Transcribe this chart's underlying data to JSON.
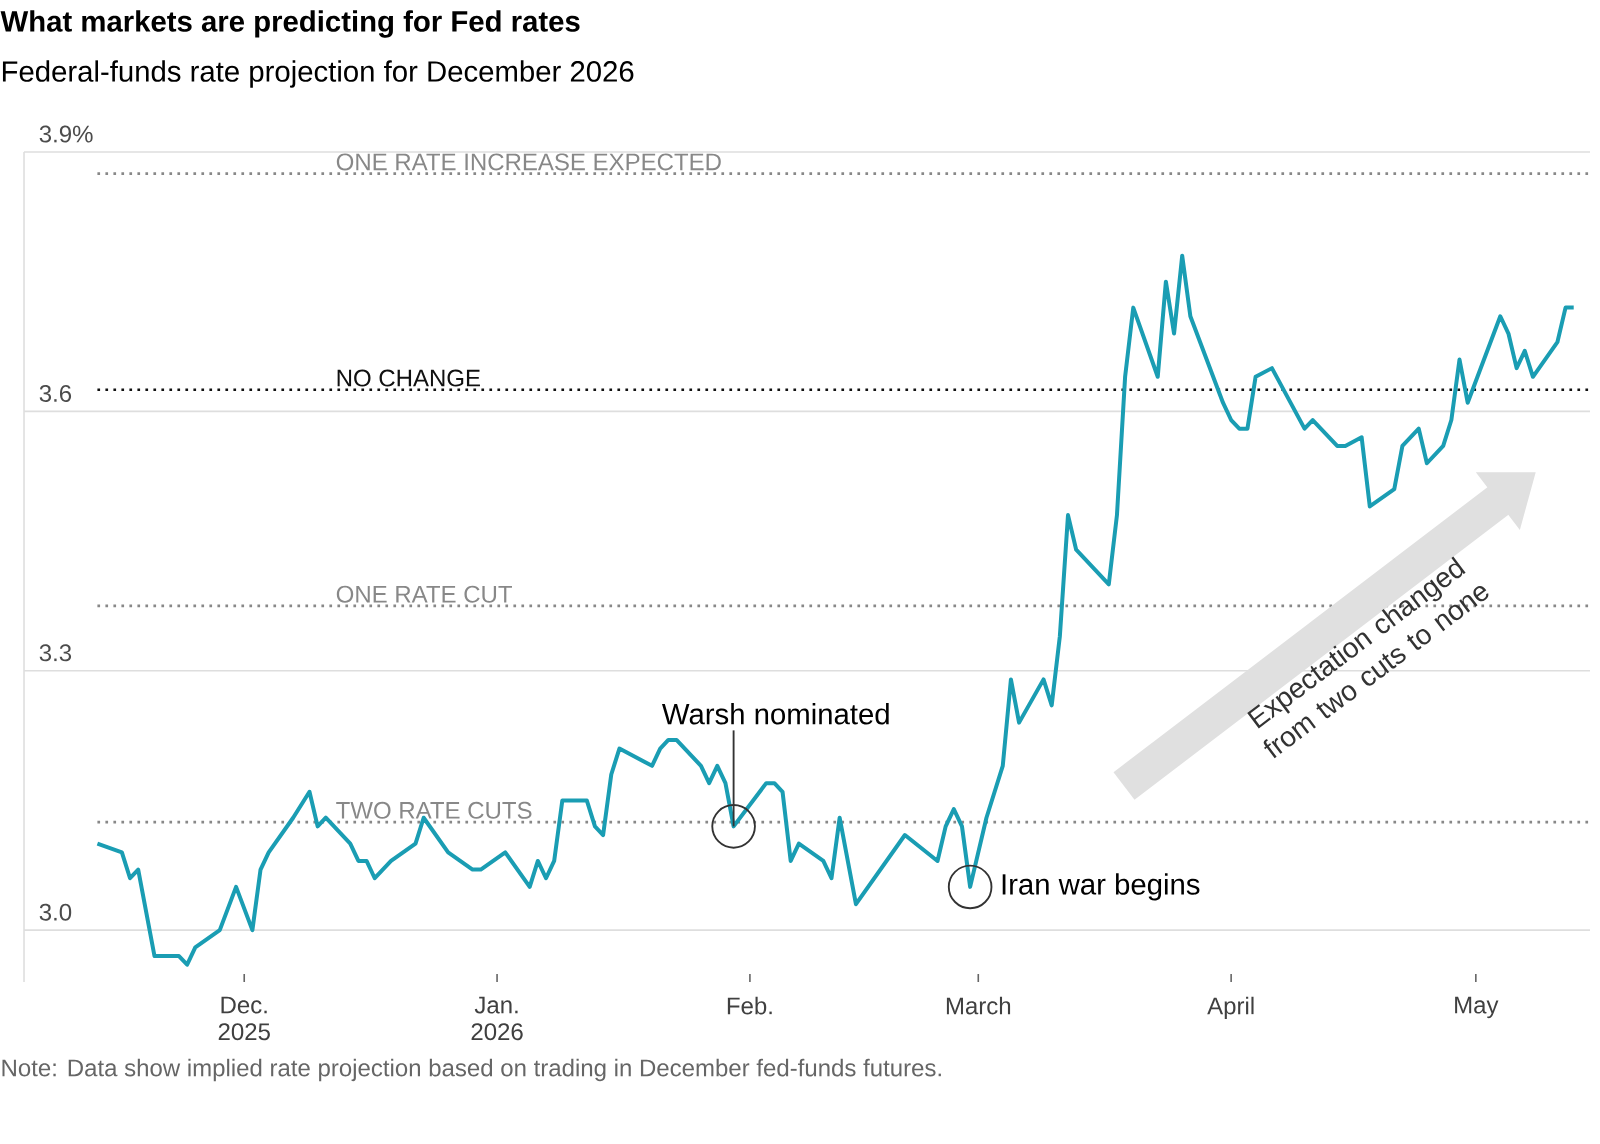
{
  "chart_data": {
    "type": "line",
    "title": "What markets are predicting for Fed rates",
    "subtitle": "Federal-funds rate projection for December 2026",
    "x": [
      "2025-11-13",
      "2025-11-16",
      "2025-11-17",
      "2025-11-18",
      "2025-11-20",
      "2025-11-23",
      "2025-11-24",
      "2025-11-25",
      "2025-11-28",
      "2025-11-30",
      "2025-12-02",
      "2025-12-03",
      "2025-12-04",
      "2025-12-07",
      "2025-12-09",
      "2025-12-10",
      "2025-12-11",
      "2025-12-14",
      "2025-12-15",
      "2025-12-16",
      "2025-12-17",
      "2025-12-19",
      "2025-12-22",
      "2025-12-23",
      "2025-12-26",
      "2025-12-29",
      "2025-12-30",
      "2026-01-02",
      "2026-01-05",
      "2026-01-06",
      "2026-01-07",
      "2026-01-08",
      "2026-01-09",
      "2026-01-12",
      "2026-01-13",
      "2026-01-14",
      "2026-01-15",
      "2026-01-16",
      "2026-01-20",
      "2026-01-21",
      "2026-01-22",
      "2026-01-23",
      "2026-01-26",
      "2026-01-27",
      "2026-01-28",
      "2026-01-29",
      "2026-01-30",
      "2026-02-03",
      "2026-02-04",
      "2026-02-05",
      "2026-02-06",
      "2026-02-07",
      "2026-02-10",
      "2026-02-11",
      "2026-02-12",
      "2026-02-14",
      "2026-02-20",
      "2026-02-24",
      "2026-02-25",
      "2026-02-26",
      "2026-02-27",
      "2026-02-28",
      "2026-03-02",
      "2026-03-04",
      "2026-03-05",
      "2026-03-06",
      "2026-03-09",
      "2026-03-10",
      "2026-03-11",
      "2026-03-12",
      "2026-03-13",
      "2026-03-17",
      "2026-03-18",
      "2026-03-19",
      "2026-03-20",
      "2026-03-23",
      "2026-03-24",
      "2026-03-25",
      "2026-03-26",
      "2026-03-27",
      "2026-03-31",
      "2026-04-01",
      "2026-04-02",
      "2026-04-03",
      "2026-04-04",
      "2026-04-06",
      "2026-04-10",
      "2026-04-11",
      "2026-04-14",
      "2026-04-15",
      "2026-04-17",
      "2026-04-18",
      "2026-04-21",
      "2026-04-22",
      "2026-04-24",
      "2026-04-25",
      "2026-04-27",
      "2026-04-28",
      "2026-04-29",
      "2026-04-30",
      "2026-05-04",
      "2026-05-05",
      "2026-05-06",
      "2026-05-07",
      "2026-05-08",
      "2026-05-11",
      "2026-05-12",
      "2026-05-13"
    ],
    "series": [
      {
        "color": "#1a9db3",
        "values": [
          3.1,
          3.09,
          3.06,
          3.07,
          2.97,
          2.97,
          2.96,
          2.98,
          3.0,
          3.05,
          3.0,
          3.07,
          3.09,
          3.13,
          3.16,
          3.12,
          3.13,
          3.1,
          3.08,
          3.08,
          3.06,
          3.08,
          3.1,
          3.13,
          3.09,
          3.07,
          3.07,
          3.09,
          3.05,
          3.08,
          3.06,
          3.08,
          3.15,
          3.15,
          3.12,
          3.11,
          3.18,
          3.21,
          3.19,
          3.21,
          3.22,
          3.22,
          3.19,
          3.17,
          3.19,
          3.17,
          3.12,
          3.17,
          3.17,
          3.16,
          3.08,
          3.1,
          3.08,
          3.06,
          3.13,
          3.03,
          3.11,
          3.08,
          3.12,
          3.14,
          3.12,
          3.05,
          3.13,
          3.19,
          3.29,
          3.24,
          3.29,
          3.26,
          3.34,
          3.48,
          3.44,
          3.4,
          3.48,
          3.64,
          3.72,
          3.64,
          3.75,
          3.69,
          3.78,
          3.71,
          3.61,
          3.59,
          3.58,
          3.58,
          3.64,
          3.65,
          3.58,
          3.59,
          3.56,
          3.56,
          3.57,
          3.49,
          3.51,
          3.56,
          3.58,
          3.54,
          3.56,
          3.59,
          3.66,
          3.61,
          3.71,
          3.69,
          3.65,
          3.67,
          3.64,
          3.68,
          3.72,
          3.72
        ]
      }
    ],
    "xlim": [
      "2025-11-04",
      "2026-05-15"
    ],
    "ylim": [
      2.94,
      3.9
    ],
    "xticks": [
      {
        "value": "2025-12-01",
        "label": "Dec. 2025"
      },
      {
        "value": "2026-01-01",
        "label": "Jan. 2026"
      },
      {
        "value": "2026-02-01",
        "label": "Feb."
      },
      {
        "value": "2026-03-01",
        "label": "March"
      },
      {
        "value": "2026-04-01",
        "label": "April"
      },
      {
        "value": "2026-05-01",
        "label": "May"
      }
    ],
    "yticks": [
      {
        "value": 3.0,
        "label": "3.0"
      },
      {
        "value": 3.3,
        "label": "3.3"
      },
      {
        "value": 3.6,
        "label": "3.6"
      },
      {
        "value": 3.9,
        "label": "3.9%"
      }
    ],
    "grid": "y",
    "ref_lines": [
      {
        "axis": "y",
        "value": 3.875,
        "label": "ONE RATE INCREASE EXPECTED",
        "color": "#888888",
        "line_style": "dotted"
      },
      {
        "axis": "y",
        "value": 3.625,
        "label": "NO CHANGE",
        "color": "#111111",
        "line_style": "dotted"
      },
      {
        "axis": "y",
        "value": 3.375,
        "label": "ONE RATE CUT",
        "color": "#888888",
        "line_style": "dotted"
      },
      {
        "axis": "y",
        "value": 3.125,
        "label": "TWO RATE CUTS",
        "color": "#888888",
        "line_style": "dotted"
      }
    ],
    "annotations": [
      {
        "text": "Warsh nominated",
        "x": "2026-01-30",
        "y": 3.12
      },
      {
        "text": "Iran war begins",
        "x": "2026-02-28",
        "y": 3.05
      },
      "Expectation changed from two cuts to none",
      "Note: Data show implied rate projection based on trading in December fed-funds futures."
    ]
  }
}
